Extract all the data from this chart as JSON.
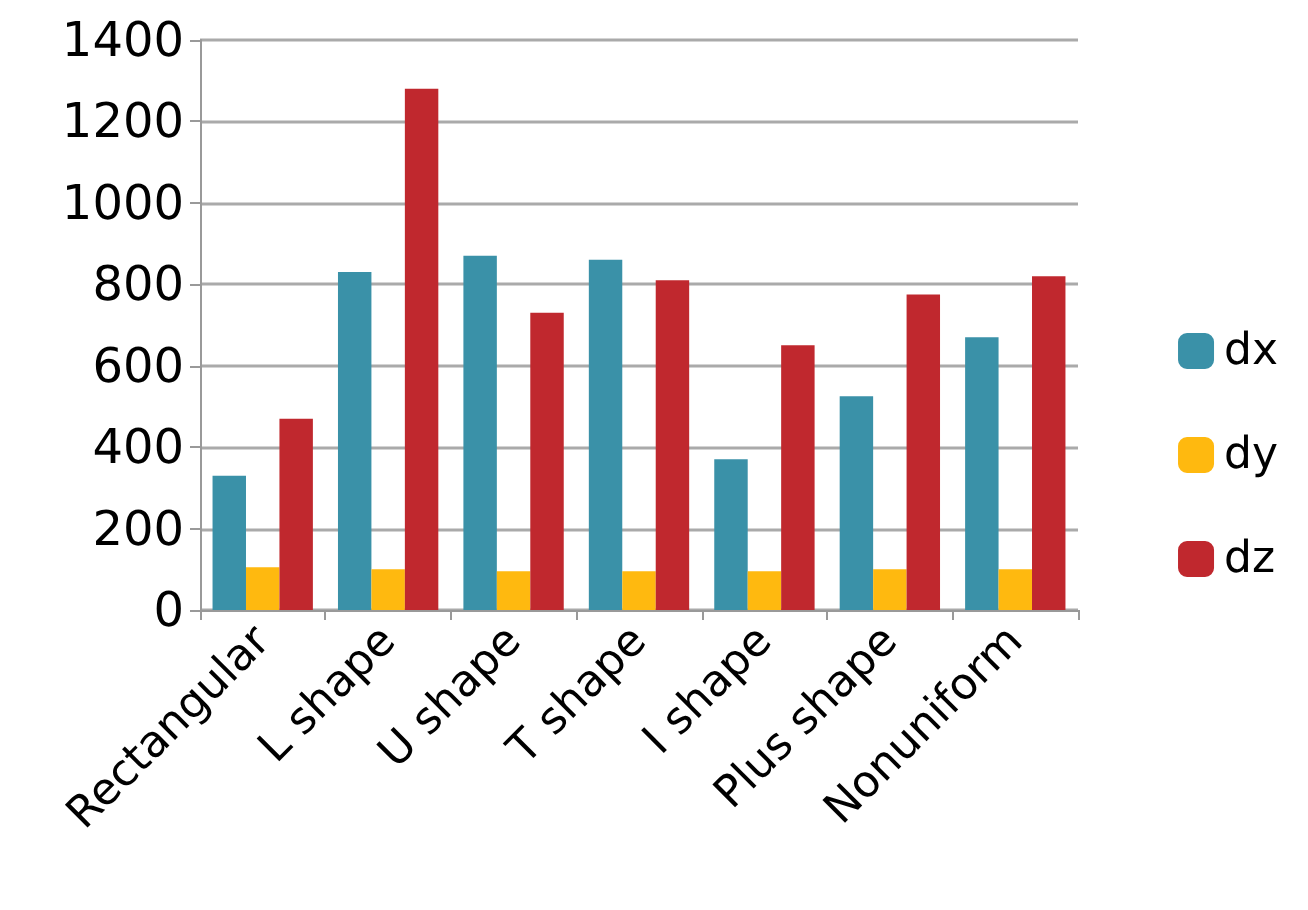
{
  "chart_data": {
    "type": "bar",
    "categories": [
      "Rectangular",
      "L shape",
      "U shape",
      "T shape",
      "I shape",
      "Plus shape",
      "Nonuniform"
    ],
    "series": [
      {
        "name": "dx",
        "color": "#3a91a8",
        "values": [
          330,
          830,
          870,
          860,
          370,
          525,
          670
        ]
      },
      {
        "name": "dy",
        "color": "#ffb90f",
        "values": [
          105,
          100,
          95,
          95,
          95,
          100,
          100
        ]
      },
      {
        "name": "dz",
        "color": "#c0282e",
        "values": [
          470,
          1280,
          730,
          810,
          650,
          775,
          820
        ]
      }
    ],
    "ylim": [
      0,
      1400
    ],
    "yticks": [
      0,
      200,
      400,
      600,
      800,
      1000,
      1200,
      1400
    ],
    "grid": "y",
    "legend": "right"
  }
}
